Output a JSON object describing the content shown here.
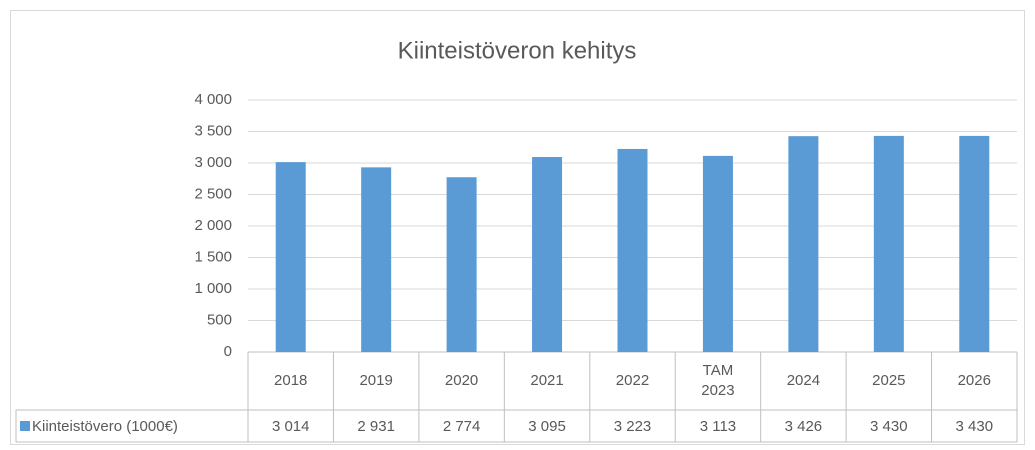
{
  "chart_data": {
    "type": "bar",
    "title": "Kiinteistöveron kehitys",
    "categories": [
      "2018",
      "2019",
      "2020",
      "2021",
      "2022",
      "TAM 2023",
      "2024",
      "2025",
      "2026"
    ],
    "series": [
      {
        "name": "Kiinteistövero (1000€)",
        "color": "#5b9bd5",
        "values": [
          3014,
          2931,
          2774,
          3095,
          3223,
          3113,
          3426,
          3430,
          3430
        ],
        "value_labels": [
          "3 014",
          "2 931",
          "2 774",
          "3 095",
          "3 223",
          "3 113",
          "3 426",
          "3 430",
          "3 430"
        ]
      }
    ],
    "ylim": [
      0,
      4000
    ],
    "yticks": [
      0,
      500,
      {
        "value": 1000,
        "label": "1 000"
      },
      {
        "value": 1500,
        "label": "1 500"
      },
      {
        "value": 2000,
        "label": "2 000"
      },
      {
        "value": 2500,
        "label": "2 500"
      },
      {
        "value": 3000,
        "label": "3 000"
      },
      {
        "value": 3500,
        "label": "3 500"
      },
      {
        "value": 4000,
        "label": "4 000"
      }
    ],
    "grid": true
  }
}
